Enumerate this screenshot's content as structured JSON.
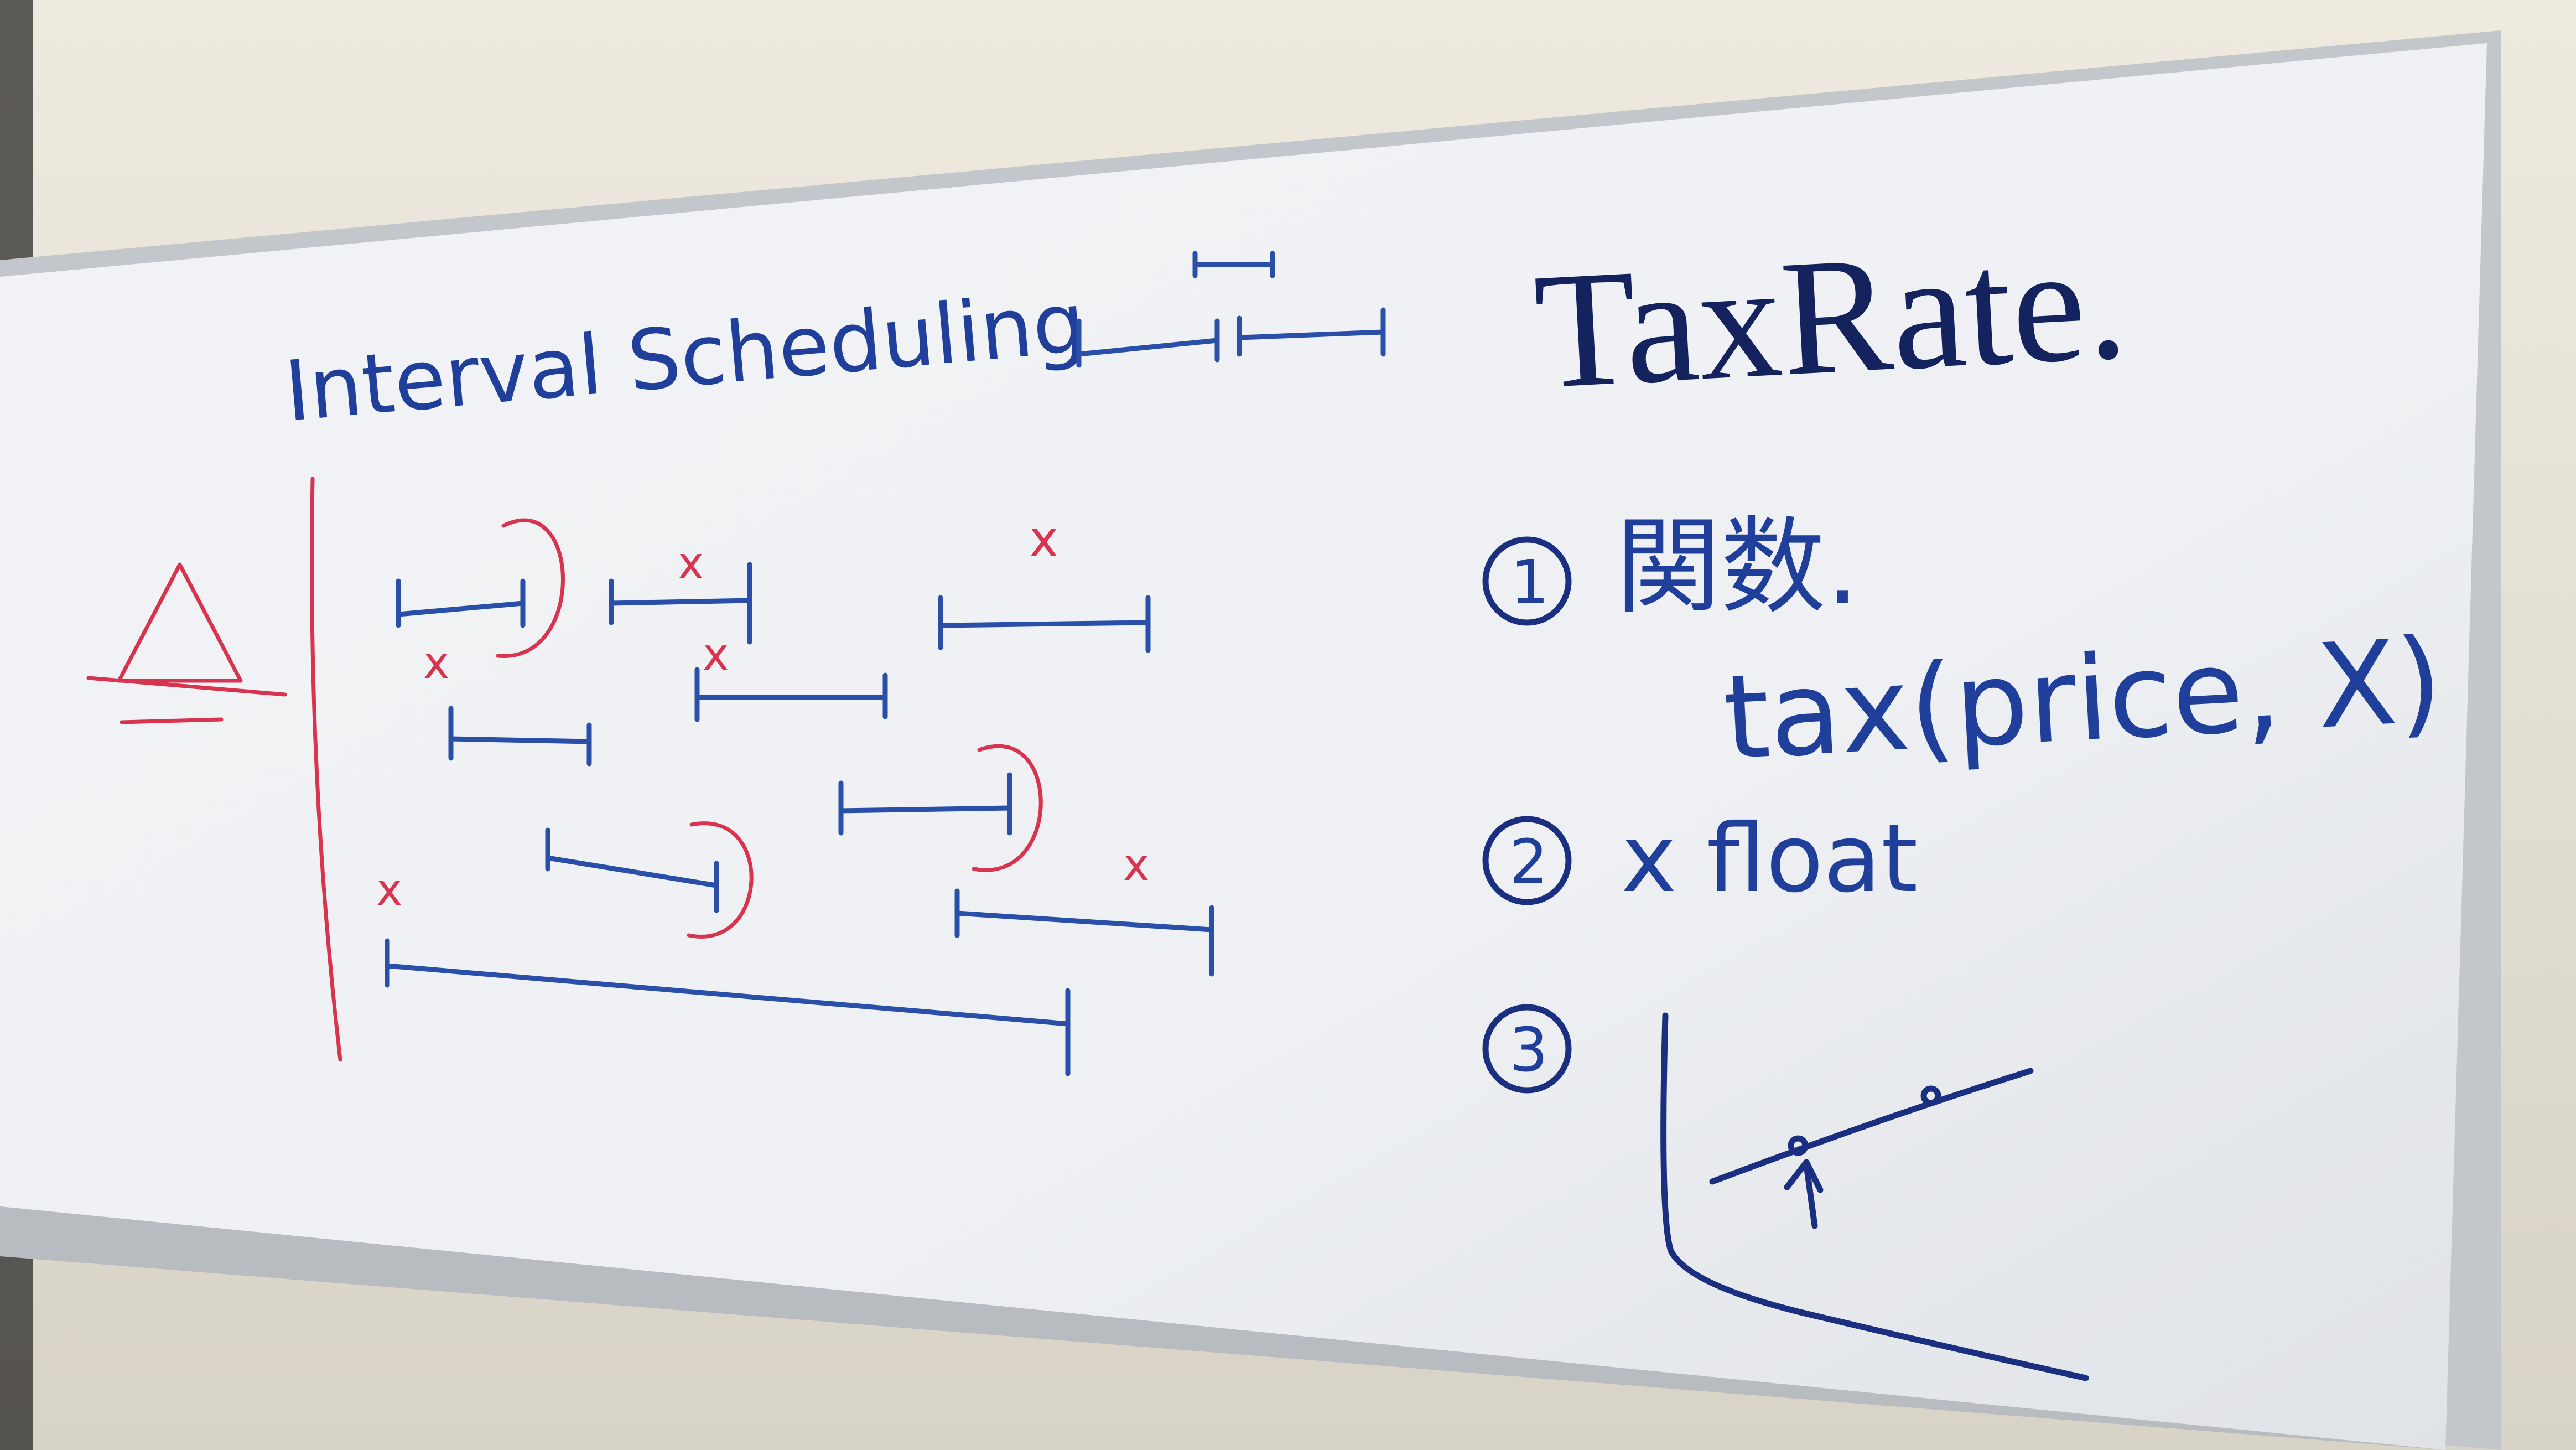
{
  "board": {
    "left_heading": "Interval Scheduling",
    "right_title": "TaxRate.",
    "items": [
      {
        "marker": "1",
        "text": "関数."
      },
      {
        "marker": "",
        "text": "tax(price, X)"
      },
      {
        "marker": "2",
        "text": "x float"
      },
      {
        "marker": "3",
        "text": ""
      }
    ],
    "reject_mark": "x"
  },
  "colors": {
    "wall": "#e9e5da",
    "board": "#f2f4f6",
    "frame": "#c9ccd0",
    "blue_ink": "#2a4fa8",
    "navy_ink": "#1a2f80",
    "red_ink": "#d9344f"
  }
}
